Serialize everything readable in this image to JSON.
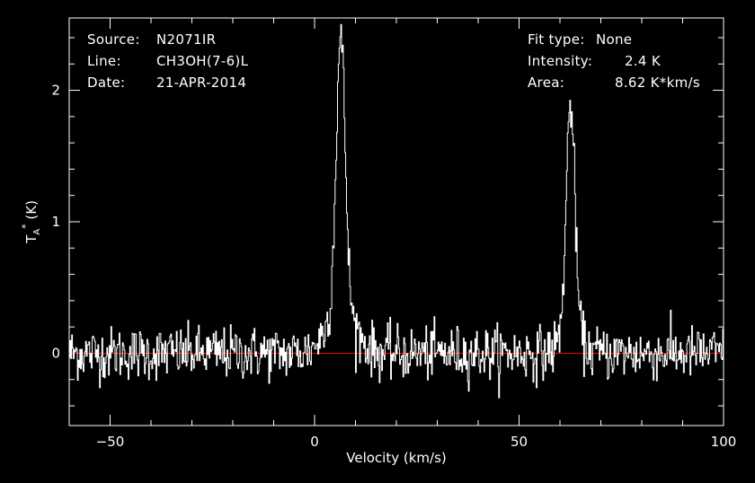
{
  "header": {
    "source_label": "Source:",
    "source_value": "N2071IR",
    "line_label": "Line:",
    "line_value": "CH3OH(7-6)L",
    "date_label": "Date:",
    "date_value": "21-APR-2014",
    "fit_label": "Fit type:",
    "fit_value": "None",
    "intensity_label": "Intensity:",
    "intensity_value": "2.4 K",
    "area_label": "Area:",
    "area_value": "8.62 K*km/s"
  },
  "colors": {
    "background": "#000000",
    "axes": "#ffffff",
    "spectrum": "#ffffff",
    "baseline": "#ff0000"
  },
  "chart_data": {
    "type": "line",
    "xlabel": "Velocity (km/s)",
    "ylabel": "T_A* (K)",
    "xlim": [
      -60,
      100
    ],
    "ylim": [
      -0.55,
      2.55
    ],
    "x_ticks": [
      -50,
      0,
      50,
      100
    ],
    "y_ticks": [
      0,
      1,
      2
    ],
    "baseline_value": 0,
    "grid": false,
    "noise_rms": 0.1,
    "channel_width": 0.2,
    "peaks": [
      {
        "center": 6.3,
        "peak": 2.4,
        "fwhm": 2.6,
        "wing_amplitude": 0.35,
        "wing_fwhm": 8
      },
      {
        "center": 62.5,
        "peak": 1.9,
        "fwhm": 2.5,
        "wing_amplitude": 0.15,
        "wing_fwhm": 6
      }
    ]
  }
}
